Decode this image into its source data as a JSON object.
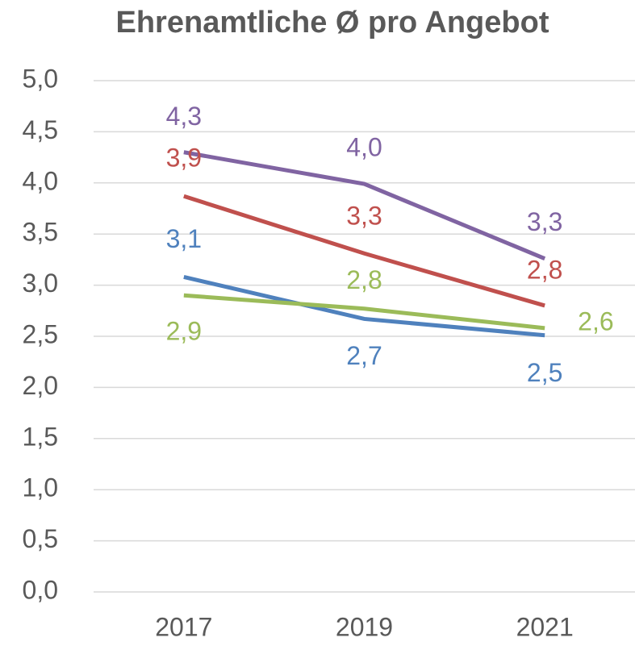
{
  "chart_data": {
    "type": "line",
    "title": "Ehrenamtliche Ø pro Angebot",
    "categories": [
      "2017",
      "2019",
      "2021"
    ],
    "series": [
      {
        "color": "#8064a2",
        "values": [
          4.3,
          3.99,
          3.26
        ],
        "value_labels": [
          "4,3",
          "4,0",
          "3,3"
        ]
      },
      {
        "color": "#c0504d",
        "values": [
          3.87,
          3.31,
          2.8
        ],
        "value_labels": [
          "3,9",
          "3,3",
          "2,8"
        ]
      },
      {
        "color": "#4f81bd",
        "values": [
          3.08,
          2.67,
          2.51
        ],
        "value_labels": [
          "3,1",
          "2,7",
          "2,5"
        ]
      },
      {
        "color": "#9bbb59",
        "values": [
          2.9,
          2.77,
          2.58
        ],
        "value_labels": [
          "2,9",
          "2,8",
          "2,6"
        ]
      }
    ],
    "ylim": [
      0,
      5
    ],
    "yticks": [
      {
        "value": 0,
        "label": "0,0"
      },
      {
        "value": 0.5,
        "label": "0,5"
      },
      {
        "value": 1,
        "label": "1,0"
      },
      {
        "value": 1.5,
        "label": "1,5"
      },
      {
        "value": 2,
        "label": "2,0"
      },
      {
        "value": 2.5,
        "label": "2,5"
      },
      {
        "value": 3,
        "label": "3,0"
      },
      {
        "value": 3.5,
        "label": "3,5"
      },
      {
        "value": 4,
        "label": "4,0"
      },
      {
        "value": 4.5,
        "label": "4,5"
      },
      {
        "value": 5,
        "label": "5,0"
      }
    ],
    "grid": true
  }
}
